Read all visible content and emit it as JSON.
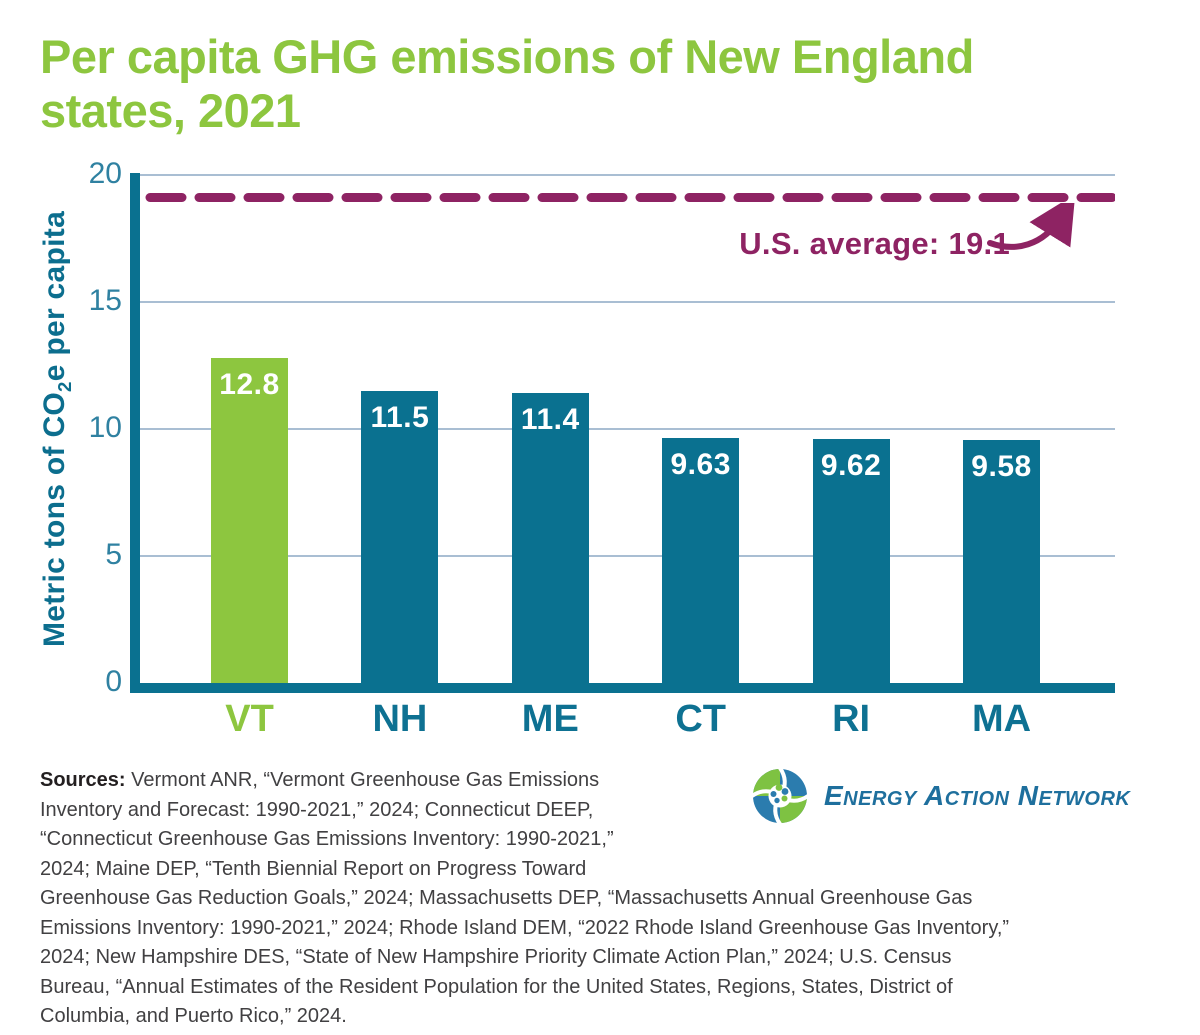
{
  "title": {
    "line1": "Per capita GHG emissions of New England",
    "line2": "states, 2021"
  },
  "chart_data": {
    "type": "bar",
    "title": "Per capita GHG emissions of New England states, 2021",
    "categories": [
      "VT",
      "NH",
      "ME",
      "CT",
      "RI",
      "MA"
    ],
    "values": [
      12.8,
      11.5,
      11.4,
      9.63,
      9.62,
      9.58
    ],
    "value_labels": [
      "12.8",
      "11.5",
      "11.4",
      "9.63",
      "9.62",
      "9.58"
    ],
    "bar_colors": [
      "#8DC63F",
      "#0A7190",
      "#0A7190",
      "#0A7190",
      "#0A7190",
      "#0A7190"
    ],
    "category_label_colors": [
      "#8DC63F",
      "#0E7192",
      "#0E7192",
      "#0E7192",
      "#0E7192",
      "#0E7192"
    ],
    "xlabel": "",
    "ylabel": "Metric tons of CO2e per capita",
    "ylim": [
      0,
      20
    ],
    "yticks": [
      0,
      5,
      10,
      15,
      20
    ],
    "grid": true,
    "legend": false,
    "average_line": {
      "value": 19.1,
      "label": "U.S. average: 19.1",
      "style": "dashed",
      "color": "#8E2363"
    }
  },
  "y_axis_label": {
    "pre": "Metric tons of CO",
    "sub": "2",
    "post": "e per capita"
  },
  "sources": {
    "label": "Sources:",
    "lines": [
      "Vermont ANR, “Vermont Greenhouse Gas Emissions",
      "Inventory and Forecast: 1990-2021,” 2024; Connecticut DEEP,",
      "“Connecticut Greenhouse Gas Emissions Inventory: 1990-2021,”",
      "2024; Maine DEP, “Tenth Biennial Report on Progress Toward",
      "Greenhouse Gas Reduction Goals,” 2024; Massachusetts DEP, “Massachusetts Annual Greenhouse Gas",
      "Emissions Inventory: 1990-2021,” 2024; Rhode Island DEM, “2022 Rhode Island Greenhouse Gas Inventory,”",
      "2024; New Hampshire DES, “State of New Hampshire Priority Climate Action Plan,” 2024; U.S. Census",
      "Bureau, “Annual Estimates of the Resident Population for the United States, Regions, States, District of",
      "Columbia, and Puerto Rico,” 2024."
    ]
  },
  "logo": {
    "text": "Energy Action Network"
  },
  "colors": {
    "title_green": "#8DC63F",
    "bar_green": "#8DC63F",
    "bar_teal": "#0A7190",
    "axis_teal": "#0A7190",
    "tick_label_teal": "#2F81A1",
    "y_title_teal": "#0C6E8E",
    "gridline": "#A9BED3",
    "average_purple": "#8E2363",
    "sources_text": "#414042",
    "logo_blue": "#2B7CAE",
    "logo_green": "#7EC242",
    "logo_text_teal": "#1E6F9D"
  }
}
